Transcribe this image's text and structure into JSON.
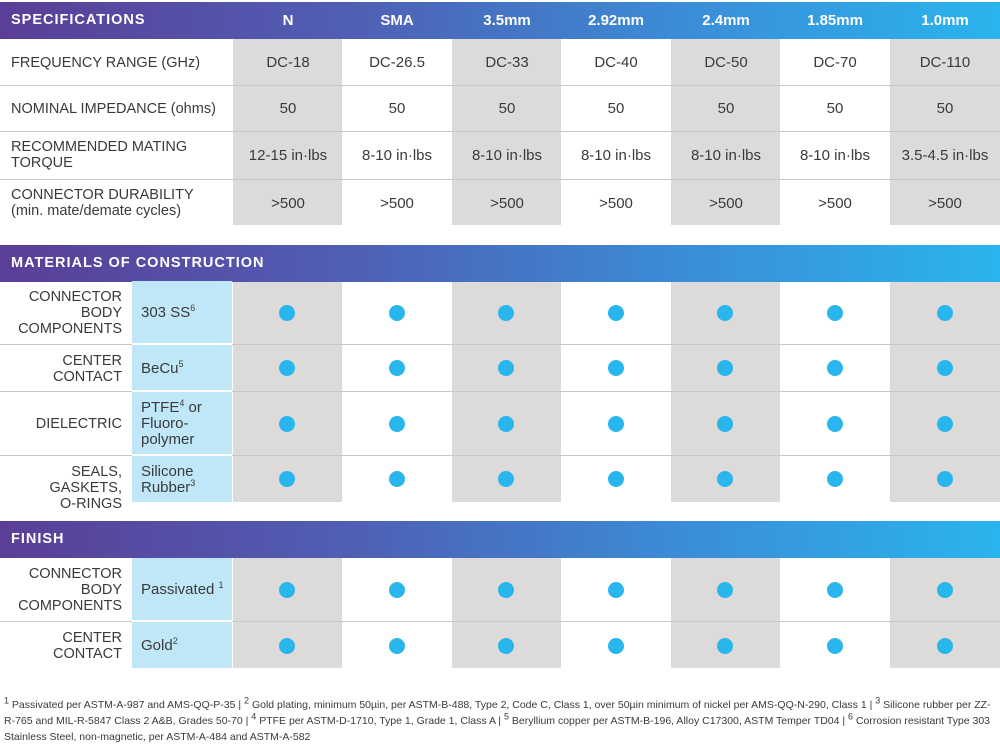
{
  "specifications": {
    "title": "SPECIFICATIONS",
    "columns": [
      "N",
      "SMA",
      "3.5mm",
      "2.92mm",
      "2.4mm",
      "1.85mm",
      "1.0mm"
    ],
    "rows": [
      {
        "label": "FREQUENCY RANGE (GHz)",
        "values": [
          "DC-18",
          "DC-26.5",
          "DC-33",
          "DC-40",
          "DC-50",
          "DC-70",
          "DC-110"
        ]
      },
      {
        "label": "NOMINAL IMPEDANCE (ohms)",
        "values": [
          "50",
          "50",
          "50",
          "50",
          "50",
          "50",
          "50"
        ]
      },
      {
        "label_line1": "RECOMMENDED MATING",
        "label_line2": "TORQUE",
        "values": [
          "12-15 in·lbs",
          "8-10 in·lbs",
          "8-10 in·lbs",
          "8-10 in·lbs",
          "8-10 in·lbs",
          "8-10 in·lbs",
          "3.5-4.5 in·lbs"
        ]
      },
      {
        "label_line1": "CONNECTOR DURABILITY",
        "label_line2": "(min. mate/demate cycles)",
        "values": [
          ">500",
          ">500",
          ">500",
          ">500",
          ">500",
          ">500",
          ">500"
        ]
      }
    ]
  },
  "materials": {
    "title": "MATERIALS OF CONSTRUCTION",
    "rows": [
      {
        "component": [
          "CONNECTOR",
          "BODY",
          "COMPONENTS"
        ],
        "material": [
          "303 SS"
        ],
        "sup": "6"
      },
      {
        "component": [
          "CENTER",
          "CONTACT"
        ],
        "material": [
          "BeCu"
        ],
        "sup": "5"
      },
      {
        "component": [
          "DIELECTRIC"
        ],
        "material": [
          "PTFE",
          " or",
          "Fluoro-",
          "polymer"
        ],
        "sup": "4"
      },
      {
        "component": [
          "SEALS, GASKETS,",
          "O-RINGS"
        ],
        "material": [
          "Silicone",
          "Rubber"
        ],
        "sup": "3"
      }
    ]
  },
  "finish": {
    "title": "FINISH",
    "rows": [
      {
        "component": [
          "CONNECTOR",
          "BODY",
          "COMPONENTS"
        ],
        "material": [
          "Passivated "
        ],
        "sup": "1"
      },
      {
        "component": [
          "CENTER",
          "CONTACT"
        ],
        "material": [
          "Gold"
        ],
        "sup": "2"
      }
    ]
  },
  "footnotes": {
    "n1": "1",
    "t1": " Passivated per ASTM-A-987 and AMS-QQ-P-35 | ",
    "n2": "2",
    "t2": " Gold plating, minimum 50µin, per ASTM-B-488, Type 2, Code C, Class 1, over 50µin minimum of nickel per AMS-QQ-N-290, Class 1 | ",
    "n3": "3",
    "t3": " Silicone rubber per ZZ-R-765 and MIL-R-5847 Class 2 A&B, Grades 50-70 | ",
    "n4": "4",
    "t4": " PTFE per ASTM-D-1710, Type 1, Grade 1, Class A | ",
    "n5": "5",
    "t5": " Beryllium copper per ASTM-B-196, Alloy C17300, ASTM Temper TD04 | ",
    "n6": "6",
    "t6": " Corrosion resistant Type 303 Stainless Steel, non-magnetic, per ASTM-A-484 and ASTM-A-582"
  },
  "colors": {
    "accent_dot": "#29b6ec",
    "shade": "#dcdbd9",
    "material_cell": "#bfe7f8"
  }
}
